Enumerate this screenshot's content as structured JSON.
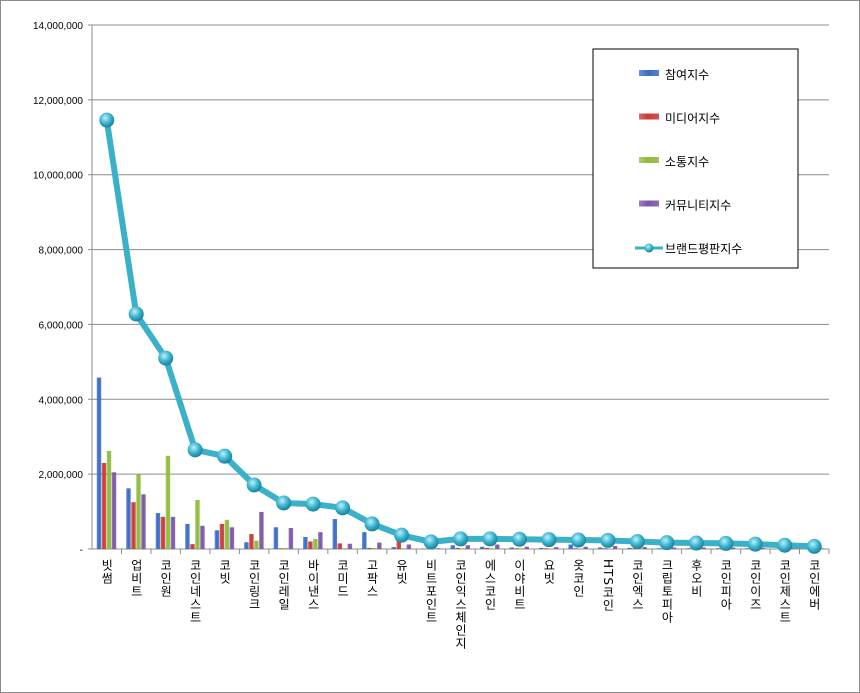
{
  "chart_data": {
    "type": "bar+line",
    "title": "",
    "xlabel": "",
    "ylabel": "",
    "ylim": [
      0,
      14000000
    ],
    "yticks": [
      "-",
      "2,000,000",
      "4,000,000",
      "6,000,000",
      "8,000,000",
      "10,000,000",
      "12,000,000",
      "14,000,000"
    ],
    "grid": true,
    "legend_position": "top-right",
    "categories": [
      "빗썸",
      "업비트",
      "코인원",
      "코인네스트",
      "코빗",
      "코인링크",
      "코인레일",
      "바이낸스",
      "코미드",
      "고팍스",
      "유빗",
      "비트포인트",
      "코인익스체인지",
      "에스코인",
      "이야비트",
      "요빗",
      "옷코인",
      "HTS코인",
      "코인엑스",
      "크립토피아",
      "후오비",
      "코인피아",
      "코인이즈",
      "코인제스트",
      "코인에버"
    ],
    "series": [
      {
        "name": "참여지수",
        "type": "bar",
        "color": "#3a6cc4",
        "values": [
          4580000,
          1620000,
          960000,
          670000,
          500000,
          180000,
          580000,
          320000,
          800000,
          450000,
          50000,
          10000,
          100000,
          60000,
          40000,
          30000,
          120000,
          40000,
          30000,
          20000,
          20000,
          20000,
          20000,
          10000,
          10000
        ]
      },
      {
        "name": "미디어지수",
        "type": "bar",
        "color": "#c83a36",
        "values": [
          2300000,
          1250000,
          860000,
          130000,
          670000,
          400000,
          20000,
          200000,
          150000,
          30000,
          300000,
          10000,
          30000,
          30000,
          20000,
          20000,
          20000,
          20000,
          20000,
          10000,
          10000,
          10000,
          10000,
          10000,
          10000
        ]
      },
      {
        "name": "소통지수",
        "type": "bar",
        "color": "#8fbb3a",
        "values": [
          2620000,
          1990000,
          2490000,
          1310000,
          780000,
          220000,
          30000,
          270000,
          20000,
          30000,
          20000,
          10000,
          20000,
          20000,
          20000,
          10000,
          10000,
          10000,
          10000,
          10000,
          10000,
          10000,
          10000,
          10000,
          10000
        ]
      },
      {
        "name": "커뮤니티지수",
        "type": "bar",
        "color": "#7a56a8",
        "values": [
          2050000,
          1460000,
          860000,
          620000,
          580000,
          990000,
          560000,
          450000,
          140000,
          170000,
          120000,
          20000,
          100000,
          120000,
          60000,
          50000,
          60000,
          80000,
          50000,
          40000,
          40000,
          40000,
          30000,
          20000,
          20000
        ]
      },
      {
        "name": "브랜드평판지수",
        "type": "line",
        "color": "#3bb0c9",
        "values": [
          11460000,
          6280000,
          5100000,
          2650000,
          2480000,
          1710000,
          1230000,
          1200000,
          1100000,
          670000,
          370000,
          190000,
          270000,
          270000,
          260000,
          250000,
          240000,
          230000,
          200000,
          170000,
          160000,
          150000,
          130000,
          100000,
          70000
        ]
      }
    ]
  }
}
